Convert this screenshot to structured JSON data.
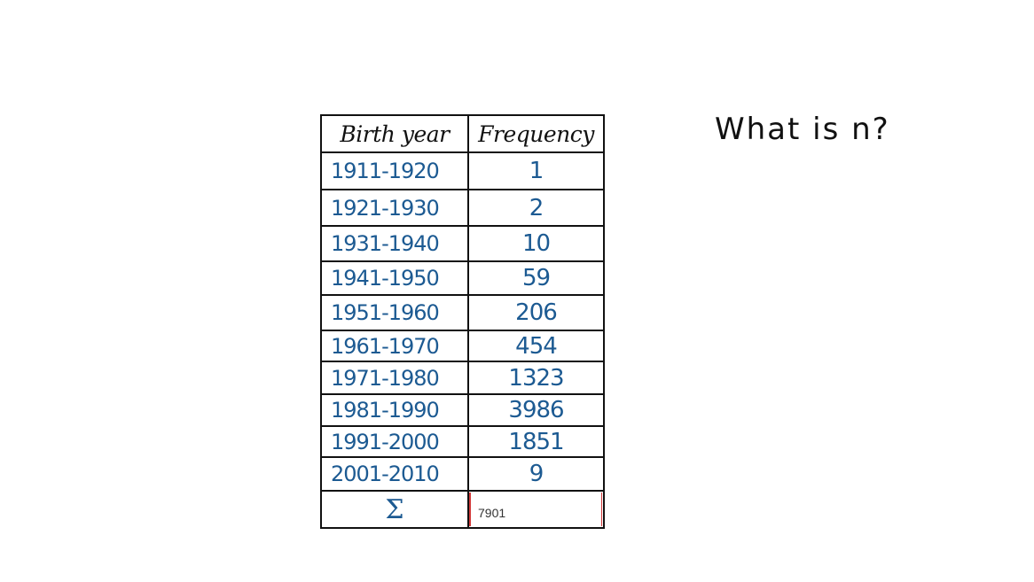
{
  "table": {
    "header": {
      "col1": "Birth year",
      "col2": "Frequency"
    },
    "rows": [
      {
        "year": "1911-1920",
        "freq": "1"
      },
      {
        "year": "1921-1930",
        "freq": "2"
      },
      {
        "year": "1931-1940",
        "freq": "10"
      },
      {
        "year": "1941-1950",
        "freq": "59"
      },
      {
        "year": "1951-1960",
        "freq": "206"
      },
      {
        "year": "1961-1970",
        "freq": "454"
      },
      {
        "year": "1971-1980",
        "freq": "1323"
      },
      {
        "year": "1981-1990",
        "freq": "3986"
      },
      {
        "year": "1991-2000",
        "freq": "1851"
      },
      {
        "year": "2001-2010",
        "freq": "9"
      }
    ],
    "sum_symbol": "Σ",
    "answer_value": "7901"
  },
  "question": "What is n?",
  "colors": {
    "ink_blue": "#1c5a92",
    "ink_black": "#111111",
    "input_border": "#d23a3a"
  }
}
